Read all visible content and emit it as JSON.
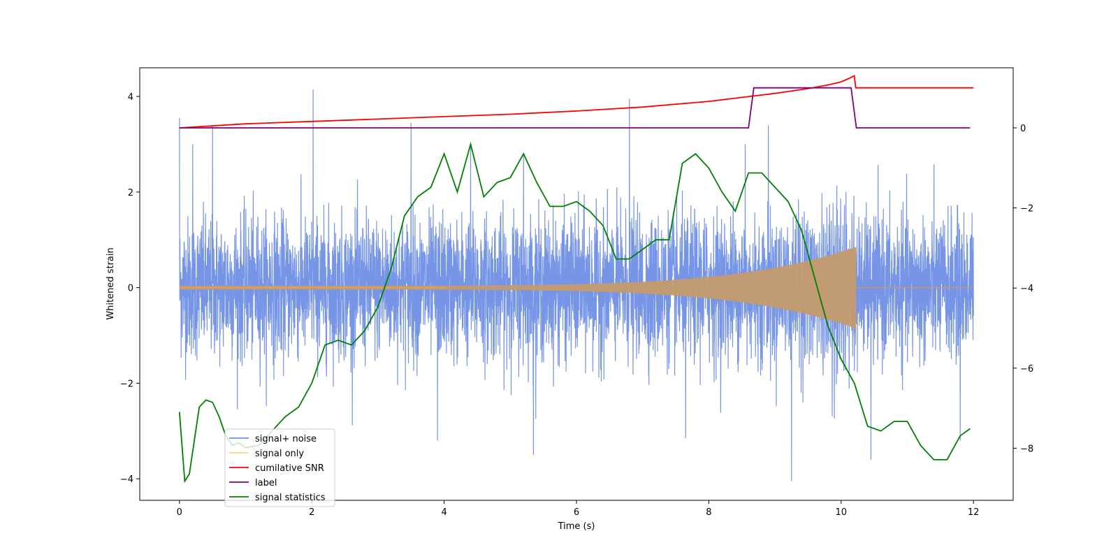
{
  "chart_data": {
    "type": "line",
    "title": "",
    "xlabel": "Time (s)",
    "ylabel": "Whitened strain",
    "xlim": [
      -0.6,
      12.6
    ],
    "ylim_left": [
      -4.45,
      4.6
    ],
    "ylim_right": [
      -9.3,
      1.5
    ],
    "xticks": [
      0,
      2,
      4,
      6,
      8,
      10,
      12
    ],
    "yticks_left": [
      -4,
      -2,
      0,
      2,
      4
    ],
    "yticks_right": [
      -8,
      -6,
      -4,
      -2,
      0
    ],
    "grid": false,
    "legend_position": "lower-left",
    "series": [
      {
        "name": "signal+ noise",
        "color": "#6f8fe6",
        "axis": "left",
        "description_values": {
          "t_start": 0,
          "t_end": 12,
          "noise_amplitude": 1.2,
          "spikes": [
            [
              0.0,
              3.55
            ],
            [
              0.2,
              3.0
            ],
            [
              0.5,
              3.4
            ],
            [
              2.02,
              4.15
            ],
            [
              3.5,
              3.45
            ],
            [
              4.4,
              3.0
            ],
            [
              5.2,
              2.8
            ],
            [
              6.8,
              3.95
            ],
            [
              8.55,
              3.0
            ],
            [
              8.9,
              3.4
            ],
            [
              9.25,
              -4.05
            ],
            [
              5.35,
              -3.5
            ],
            [
              10.45,
              -3.6
            ],
            [
              3.9,
              -3.2
            ],
            [
              7.65,
              -3.15
            ],
            [
              11.8,
              -3.2
            ]
          ]
        }
      },
      {
        "name": "signal only",
        "color": "#f5b041",
        "axis": "left",
        "description_values": {
          "chirp_start": 0,
          "chirp_end": 10.22,
          "amplitude_start": 0.04,
          "amplitude_end": 0.85
        }
      },
      {
        "name": "cumilative SNR",
        "color": "#ff0000",
        "axis": "right",
        "x": [
          0,
          1,
          2,
          3,
          4,
          5,
          6,
          7,
          8,
          8.5,
          9,
          9.5,
          9.8,
          10,
          10.1,
          10.2,
          10.22,
          11,
          12
        ],
        "y": [
          0,
          0.1,
          0.16,
          0.22,
          0.28,
          0.34,
          0.42,
          0.52,
          0.66,
          0.76,
          0.86,
          0.98,
          1.07,
          1.15,
          1.22,
          1.3,
          1.0,
          1.0,
          1.0
        ]
      },
      {
        "name": "label",
        "color": "#800080",
        "axis": "right",
        "x": [
          0,
          8.6,
          8.68,
          10.15,
          10.23,
          11.95
        ],
        "y": [
          0,
          0,
          1.0,
          1.0,
          0,
          0
        ]
      },
      {
        "name": "signal statistics",
        "color": "#008000",
        "axis": "left",
        "x": [
          0,
          0.08,
          0.15,
          0.3,
          0.4,
          0.5,
          0.6,
          0.7,
          0.8,
          0.9,
          1.0,
          1.2,
          1.4,
          1.6,
          1.8,
          2.0,
          2.2,
          2.4,
          2.6,
          2.8,
          3.0,
          3.2,
          3.4,
          3.6,
          3.8,
          4.0,
          4.2,
          4.4,
          4.6,
          4.8,
          5.0,
          5.2,
          5.4,
          5.6,
          5.8,
          6.0,
          6.2,
          6.4,
          6.6,
          6.8,
          7.0,
          7.2,
          7.4,
          7.6,
          7.8,
          8.0,
          8.2,
          8.4,
          8.6,
          8.8,
          9.0,
          9.2,
          9.4,
          9.6,
          9.8,
          10.0,
          10.2,
          10.4,
          10.6,
          10.8,
          11.0,
          11.2,
          11.4,
          11.6,
          11.8,
          11.95
        ],
        "y": [
          -2.6,
          -4.05,
          -3.9,
          -2.5,
          -2.35,
          -2.4,
          -2.7,
          -3.1,
          -3.3,
          -3.25,
          -3.35,
          -3.3,
          -3.0,
          -2.7,
          -2.5,
          -2.0,
          -1.2,
          -1.1,
          -1.2,
          -0.9,
          -0.4,
          0.4,
          1.5,
          1.9,
          2.1,
          2.8,
          2.0,
          3.0,
          1.9,
          2.2,
          2.3,
          2.8,
          2.2,
          1.7,
          1.7,
          1.8,
          1.6,
          1.3,
          0.6,
          0.6,
          0.8,
          1.0,
          1.0,
          2.6,
          2.8,
          2.5,
          2.0,
          1.6,
          2.4,
          2.4,
          2.1,
          1.8,
          1.2,
          0.2,
          -0.8,
          -1.5,
          -2.0,
          -2.9,
          -3.0,
          -2.8,
          -2.8,
          -3.3,
          -3.6,
          -3.6,
          -3.1,
          -2.95
        ]
      }
    ]
  }
}
